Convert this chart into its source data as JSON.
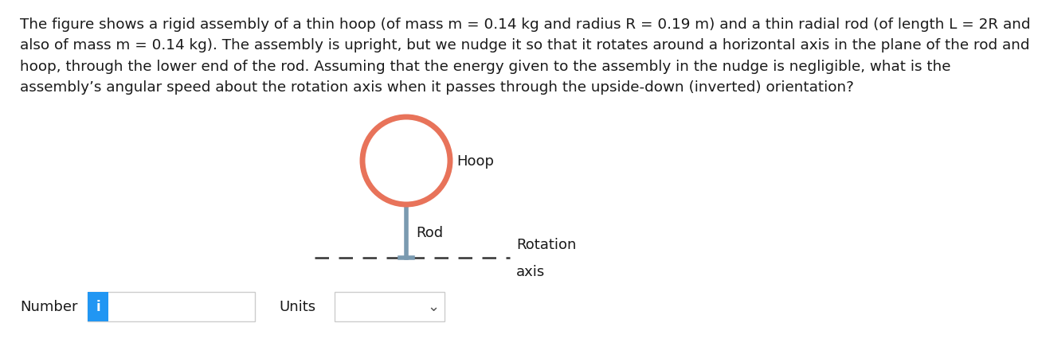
{
  "title_text": "The figure shows a rigid assembly of a thin hoop (of mass m = 0.14 kg and radius R = 0.19 m) and a thin radial rod (of length L = 2R and\nalso of mass m = 0.14 kg). The assembly is upright, but we nudge it so that it rotates around a horizontal axis in the plane of the rod and\nhoop, through the lower end of the rod. Assuming that the energy given to the assembly in the nudge is negligible, what is the\nassembly’s angular speed about the rotation axis when it passes through the upside-down (inverted) orientation?",
  "hoop_color": "#e8735a",
  "hoop_linewidth": 5,
  "rod_color": "#7a9ab0",
  "rod_linewidth": 4,
  "axis_color": "#333333",
  "hoop_label": "Hoop",
  "rod_label": "Rod",
  "rotation_label_line1": "Rotation",
  "rotation_label_line2": "axis",
  "number_label": "Number",
  "units_label": "Units",
  "info_button_color": "#2196F3",
  "background_color": "#ffffff",
  "text_color": "#1a1a1a",
  "font_size_title": 13.2,
  "font_size_labels": 13,
  "font_size_ui": 13
}
